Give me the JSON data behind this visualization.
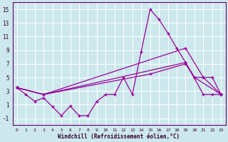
{
  "xlabel": "Windchill (Refroidissement éolien,°C)",
  "bg_color": "#cce8ed",
  "grid_color": "#ffffff",
  "line_color": "#990099",
  "xlim": [
    -0.5,
    23.5
  ],
  "ylim": [
    -2.0,
    16.0
  ],
  "xticks": [
    0,
    1,
    2,
    3,
    4,
    5,
    6,
    7,
    8,
    9,
    10,
    11,
    12,
    13,
    14,
    15,
    16,
    17,
    18,
    19,
    20,
    21,
    22,
    23
  ],
  "yticks": [
    -1,
    1,
    3,
    5,
    7,
    9,
    11,
    13,
    15
  ],
  "series1_x": [
    0,
    1,
    2,
    3,
    4,
    5,
    6,
    7,
    8,
    9,
    10,
    11,
    12,
    13,
    14,
    15,
    16,
    17,
    18,
    19,
    20,
    21,
    22,
    23
  ],
  "series1_y": [
    3.5,
    2.5,
    1.5,
    2.0,
    0.7,
    -0.6,
    0.8,
    -0.6,
    -0.6,
    1.5,
    2.5,
    2.5,
    5.0,
    2.5,
    8.8,
    15.0,
    13.5,
    11.5,
    9.3,
    7.2,
    5.0,
    5.0,
    5.0,
    2.5
  ],
  "series2_x": [
    0,
    3,
    19,
    21,
    22,
    23
  ],
  "series2_y": [
    3.5,
    2.5,
    7.2,
    2.5,
    2.5,
    2.5
  ],
  "series3_x": [
    0,
    3,
    19,
    21,
    23
  ],
  "series3_y": [
    3.5,
    2.5,
    9.3,
    5.0,
    2.5
  ],
  "series4_x": [
    0,
    3,
    15,
    19,
    20,
    23
  ],
  "series4_y": [
    3.5,
    2.5,
    5.5,
    7.0,
    5.0,
    2.5
  ]
}
